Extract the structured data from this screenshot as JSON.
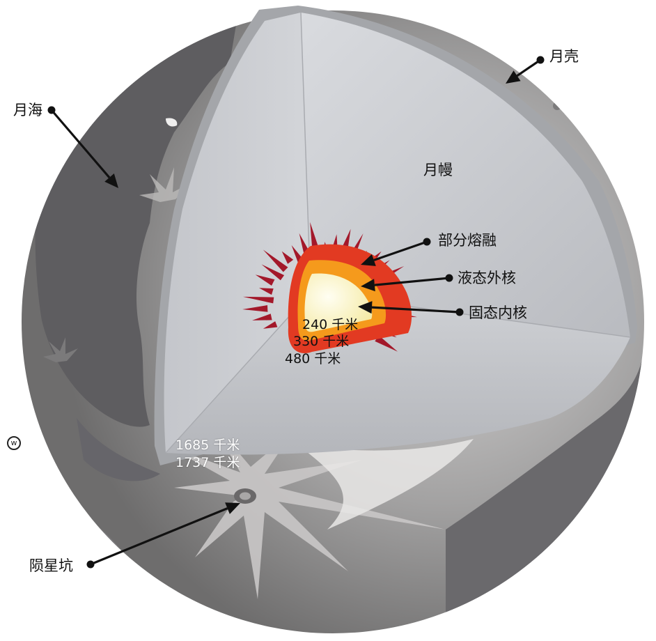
{
  "labels": {
    "crust": "月壳",
    "maria": "月海",
    "mantle": "月幔",
    "partial_melt": "部分熔融",
    "outer_core": "液态外核",
    "inner_core": "固态内核",
    "crater": "陨星坑"
  },
  "distances": {
    "inner_core": "240 千米",
    "outer_core": "330 千米",
    "partial_melt": "480 千米",
    "mantle": "1685 千米",
    "surface": "1737 千米"
  },
  "watermark": "w",
  "colors": {
    "surface": "#8c8a8a",
    "maria": "#5e5d60",
    "mantle": "#c9cbd0",
    "crust_rim": "#9fa1a5",
    "partial_melt": "#e23a22",
    "outer_core": "#f59a1c",
    "inner_core": "#fbf6d2",
    "spikes": "#a3182a"
  },
  "icons": [
    "arrow-icon",
    "dot-icon",
    "watermark-icon"
  ]
}
